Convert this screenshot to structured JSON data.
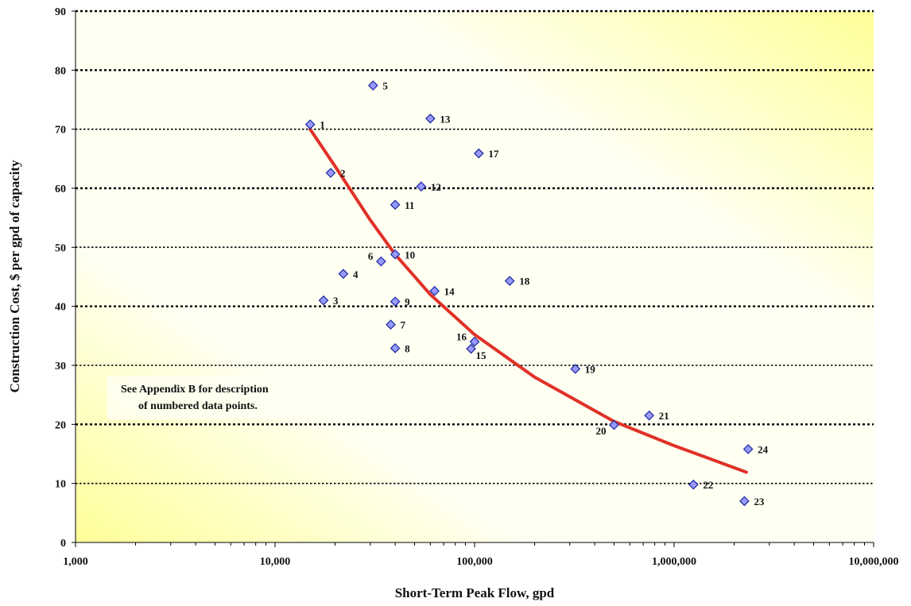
{
  "chart_data": {
    "type": "scatter",
    "xlabel": "Short-Term Peak Flow, gpd",
    "ylabel": "Construction Cost, $ per gpd of capacity",
    "x_scale": "log",
    "xlim": [
      1000,
      10000000
    ],
    "ylim": [
      0,
      90
    ],
    "x_ticks": [
      1000,
      10000,
      100000,
      1000000,
      10000000
    ],
    "x_tick_labels": [
      "1,000",
      "10,000",
      "100,000",
      "1,000,000",
      "10,000,000"
    ],
    "y_ticks": [
      0,
      10,
      20,
      30,
      40,
      50,
      60,
      70,
      80,
      90
    ],
    "y_tick_labels": [
      "0",
      "10",
      "20",
      "30",
      "40",
      "50",
      "60",
      "70",
      "80",
      "90"
    ],
    "grid": "horizontal dotted",
    "annotation": [
      "See Appendix B for description",
      "of numbered data points."
    ],
    "colors": {
      "marker_fill": "#9999ff",
      "marker_stroke": "#1a2a9a",
      "curve": "#e03127",
      "bg_light": "#fffff2",
      "bg_yellow": "#ffff99"
    },
    "points": [
      {
        "label": "1",
        "x": 15000,
        "y": 70.8
      },
      {
        "label": "2",
        "x": 19000,
        "y": 62.6
      },
      {
        "label": "3",
        "x": 17500,
        "y": 41.0
      },
      {
        "label": "4",
        "x": 22000,
        "y": 45.5
      },
      {
        "label": "5",
        "x": 31000,
        "y": 77.4
      },
      {
        "label": "6",
        "x": 34000,
        "y": 47.6
      },
      {
        "label": "7",
        "x": 38000,
        "y": 36.9
      },
      {
        "label": "8",
        "x": 40000,
        "y": 32.9
      },
      {
        "label": "9",
        "x": 40000,
        "y": 40.8
      },
      {
        "label": "10",
        "x": 40000,
        "y": 48.8
      },
      {
        "label": "11",
        "x": 40000,
        "y": 57.2
      },
      {
        "label": "12",
        "x": 54000,
        "y": 60.3
      },
      {
        "label": "13",
        "x": 60000,
        "y": 71.8
      },
      {
        "label": "14",
        "x": 63000,
        "y": 42.6
      },
      {
        "label": "15",
        "x": 96000,
        "y": 32.8
      },
      {
        "label": "16",
        "x": 100000,
        "y": 34.0
      },
      {
        "label": "17",
        "x": 105000,
        "y": 65.9
      },
      {
        "label": "18",
        "x": 150000,
        "y": 44.3
      },
      {
        "label": "19",
        "x": 320000,
        "y": 29.4
      },
      {
        "label": "20",
        "x": 500000,
        "y": 19.9
      },
      {
        "label": "21",
        "x": 750000,
        "y": 21.5
      },
      {
        "label": "22",
        "x": 1250000,
        "y": 9.8
      },
      {
        "label": "23",
        "x": 2250000,
        "y": 7.0
      },
      {
        "label": "24",
        "x": 2350000,
        "y": 15.8
      }
    ],
    "trend": {
      "type": "power",
      "x": [
        15000,
        20000,
        30000,
        40000,
        60000,
        100000,
        200000,
        500000,
        1000000,
        2300000
      ],
      "y": [
        70.0,
        63.7,
        54.6,
        48.8,
        42.0,
        35.2,
        28.0,
        20.5,
        16.4,
        11.9
      ]
    }
  }
}
